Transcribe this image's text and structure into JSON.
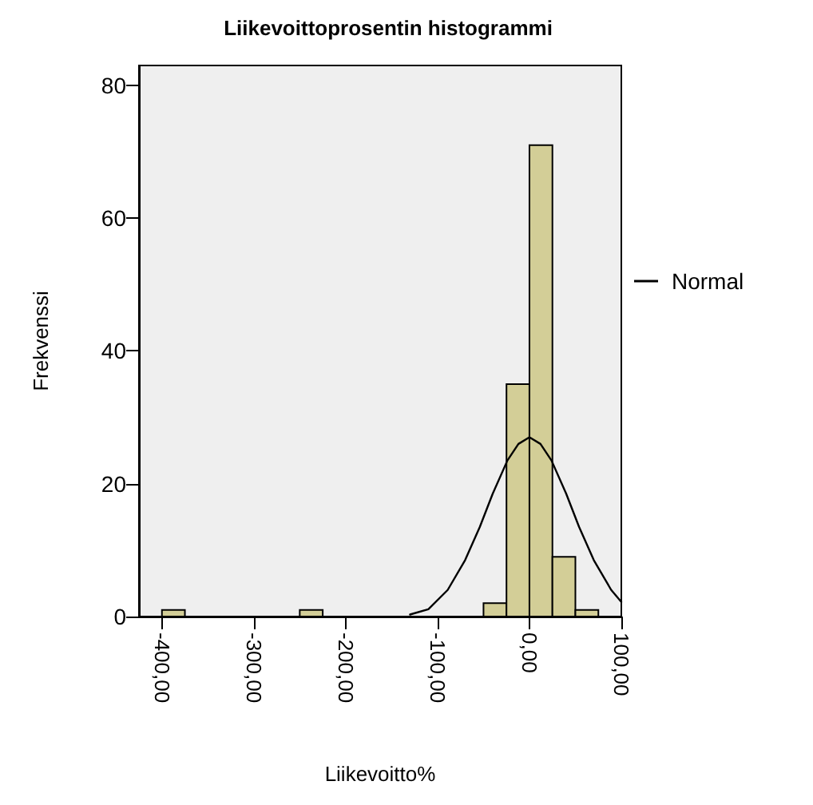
{
  "chart_data": {
    "type": "histogram",
    "title": "Liikevoittoprosentin histogrammi",
    "xlabel": "Liikevoitto%",
    "ylabel": "Frekvenssi",
    "bins": [
      -400,
      -375,
      -350,
      -325,
      -300,
      -275,
      -250,
      -225,
      -200,
      -175,
      -150,
      -125,
      -100,
      -75,
      -50,
      -25,
      0,
      25,
      50,
      75
    ],
    "series": [
      {
        "type": "histogram",
        "color": "#d3ce97",
        "values": [
          1,
          0,
          0,
          0,
          0,
          0,
          1,
          0,
          0,
          0,
          0,
          0,
          0,
          0,
          2,
          35,
          71,
          9,
          1
        ]
      },
      {
        "type": "line",
        "name": "Normal",
        "color": "#000000",
        "x": [
          -130,
          -110,
          -89,
          -70,
          -54,
          -40,
          -24,
          -12,
          0,
          12,
          24,
          40,
          54,
          70,
          89,
          100
        ],
        "values": [
          0.3,
          1.1,
          4,
          8.5,
          13.5,
          18.5,
          23.5,
          26,
          27,
          26,
          23.5,
          18.5,
          13.5,
          8.5,
          4,
          2.2
        ]
      }
    ],
    "xlim": [
      -425,
      100
    ],
    "ylim": [
      0,
      83
    ],
    "xticks": [
      {
        "value": -400,
        "label": "-400,00"
      },
      {
        "value": -300,
        "label": "-300,00"
      },
      {
        "value": -200,
        "label": "-200,00"
      },
      {
        "value": -100,
        "label": "-100,00"
      },
      {
        "value": 0,
        "label": "0,00"
      },
      {
        "value": 100,
        "label": "100,00"
      }
    ],
    "yticks": [
      0,
      20,
      40,
      60,
      80
    ],
    "grid": false,
    "legend": "right",
    "marker": "none",
    "line_style": "solid"
  }
}
